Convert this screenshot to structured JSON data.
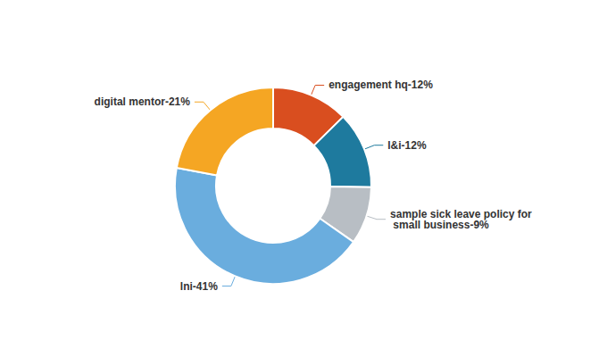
{
  "chart_data": {
    "type": "donut",
    "categories": [
      "engagement hq",
      "l&i",
      "sample sick leave policy for small business",
      "lni",
      "digital mentor"
    ],
    "values": [
      12,
      12,
      9,
      41,
      21
    ],
    "value_labels": [
      "engagement hq-12%",
      "l&i-12%",
      "sample sick leave policy for small business-9%",
      "lni-41%",
      "digital mentor-21%"
    ],
    "colors": [
      "#D94E1F",
      "#1E7A9E",
      "#B8BEC4",
      "#6AADDE",
      "#F5A623"
    ],
    "data_labels": true
  }
}
